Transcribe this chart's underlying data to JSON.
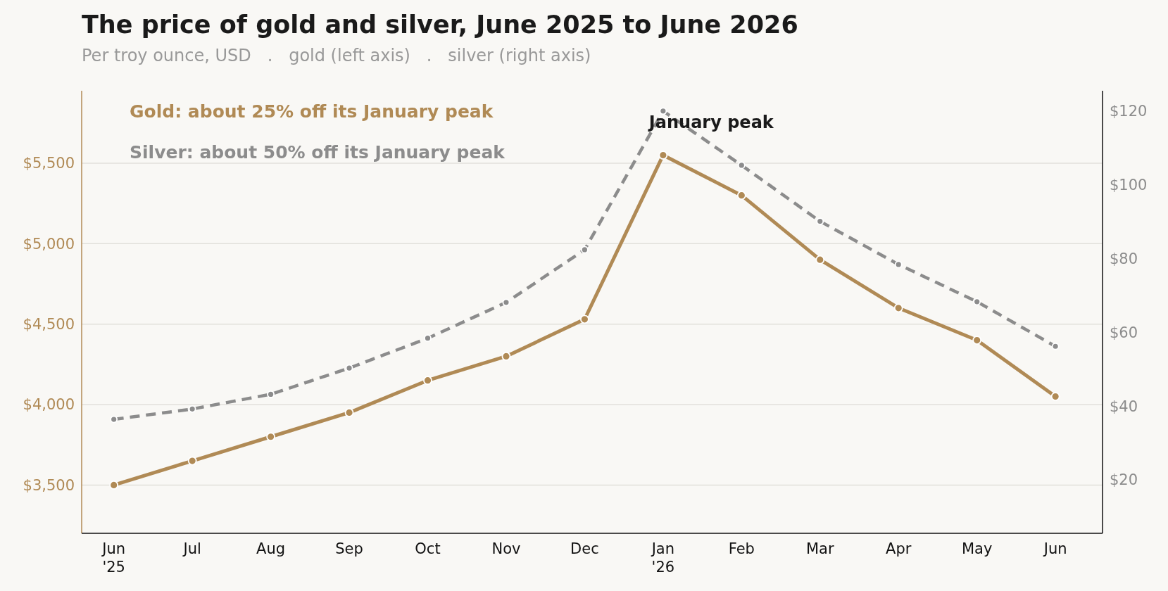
{
  "chart_data": {
    "type": "line",
    "title": "The price of gold and silver, June 2025 to June 2026",
    "subtitle": "Per troy ounce, USD   .   gold (left axis)   .   silver (right axis)",
    "categories": [
      "Jun\n'25",
      "Jul",
      "Aug",
      "Sep",
      "Oct",
      "Nov",
      "Dec",
      "Jan\n'26",
      "Feb",
      "Mar",
      "Apr",
      "May",
      "Jun"
    ],
    "series": [
      {
        "color": "#b08a55",
        "values": [
          3500,
          3650,
          3800,
          3950,
          4150,
          4300,
          4530,
          5550,
          5300,
          4900,
          4600,
          4400,
          4050
        ],
        "line_style": "solid"
      },
      {
        "color": "#8c8c8c",
        "axis": "y2",
        "values": [
          36.4,
          39.2,
          43.2,
          50.3,
          58.4,
          68.1,
          82.4,
          120,
          105.3,
          90.1,
          78.4,
          68.3,
          56.2
        ],
        "line_style": "dashed"
      }
    ],
    "ylim": [
      3200,
      5950
    ],
    "yticks": [
      {
        "value": 3500,
        "label": "$3,500"
      },
      {
        "value": 4000,
        "label": "$4,000"
      },
      {
        "value": 4500,
        "label": "$4,500"
      },
      {
        "value": 5000,
        "label": "$5,000"
      },
      {
        "value": 5500,
        "label": "$5,500"
      }
    ],
    "y2lim": [
      5.5,
      125.5
    ],
    "y2ticks": [
      {
        "value": 20,
        "label": "$20"
      },
      {
        "value": 40,
        "label": "$40"
      },
      {
        "value": 60,
        "label": "$60"
      },
      {
        "value": 80,
        "label": "$80"
      },
      {
        "value": 100,
        "label": "$100"
      },
      {
        "value": 120,
        "label": "$120"
      }
    ],
    "grid": "y",
    "marker": "circle",
    "annotations": [
      "Gold: about 25% off its January peak",
      "Silver: about 50% off its January peak",
      "January peak"
    ]
  }
}
